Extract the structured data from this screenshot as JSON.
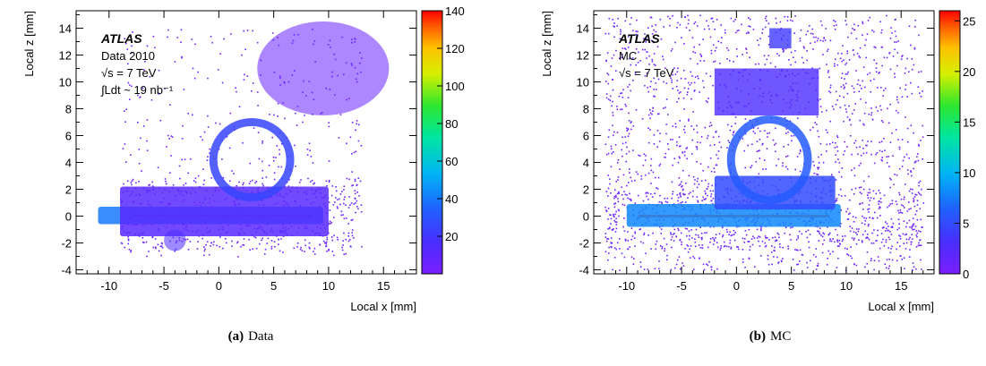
{
  "chart_data": [
    {
      "type": "heatmap",
      "xlabel": "Local x [mm]",
      "ylabel": "Local z [mm]",
      "xlim": [
        -13,
        18
      ],
      "ylim": [
        -4.3,
        15.3
      ],
      "x_ticks": [
        -10,
        -5,
        0,
        5,
        10,
        15
      ],
      "y_ticks": [
        -4,
        -2,
        0,
        2,
        4,
        6,
        8,
        10,
        12,
        14
      ],
      "colorbar": {
        "min": 0,
        "max": 140,
        "ticks": [
          20,
          40,
          60,
          80,
          100,
          120,
          140
        ]
      },
      "annotations": [
        "ATLAS",
        "Data 2010",
        "√s = 7 TeV",
        "∫Ldt ~ 19 nb⁻¹"
      ],
      "caption_tag": "(a)",
      "caption_text": "Data",
      "regions": [
        {
          "shape": "band",
          "x": [
            -8,
            8.5
          ],
          "z": [
            -0.1,
            0.1
          ],
          "value": 140
        },
        {
          "shape": "band",
          "x": [
            -11,
            9.5
          ],
          "z": [
            -0.6,
            0.7
          ],
          "value": 40
        },
        {
          "shape": "band",
          "x": [
            -9,
            10
          ],
          "z": [
            -1.5,
            2.2
          ],
          "value": 12
        },
        {
          "shape": "ring",
          "cx": 3,
          "cz": 4.2,
          "rx": 3.5,
          "rz": 2.8,
          "value": 25
        },
        {
          "shape": "cloud",
          "cx": 9.5,
          "cz": 11,
          "rx": 6,
          "rz": 3.5,
          "value": 6
        },
        {
          "shape": "cloud",
          "cx": -4,
          "cz": -1.8,
          "rx": 1,
          "rz": 0.8,
          "value": 15
        }
      ]
    },
    {
      "type": "heatmap",
      "xlabel": "Local x [mm]",
      "ylabel": "Local z [mm]",
      "xlim": [
        -13,
        18
      ],
      "ylim": [
        -4.3,
        15.3
      ],
      "x_ticks": [
        -10,
        -5,
        0,
        5,
        10,
        15
      ],
      "y_ticks": [
        -4,
        -2,
        0,
        2,
        4,
        6,
        8,
        10,
        12,
        14
      ],
      "colorbar": {
        "min": 0,
        "max": 26,
        "ticks": [
          0,
          5,
          10,
          15,
          20,
          25
        ]
      },
      "annotations": [
        "ATLAS",
        "MC",
        "√s = 7 TeV"
      ],
      "caption_tag": "(b)",
      "caption_text": "MC",
      "regions": [
        {
          "shape": "band",
          "x": [
            -9,
            8.5
          ],
          "z": [
            -0.1,
            0.1
          ],
          "value": 25
        },
        {
          "shape": "band",
          "x": [
            -10,
            9.5
          ],
          "z": [
            -0.8,
            0.9
          ],
          "value": 8
        },
        {
          "shape": "band",
          "x": [
            -2,
            9
          ],
          "z": [
            0.5,
            3
          ],
          "value": 5
        },
        {
          "shape": "ring",
          "cx": 3,
          "cz": 4.2,
          "rx": 3.5,
          "rz": 3,
          "value": 6
        },
        {
          "shape": "box",
          "x": [
            -2,
            7.5
          ],
          "z": [
            7.5,
            11
          ],
          "value": 3
        },
        {
          "shape": "box",
          "x": [
            3,
            5
          ],
          "z": [
            12.5,
            14
          ],
          "value": 4
        }
      ]
    }
  ]
}
